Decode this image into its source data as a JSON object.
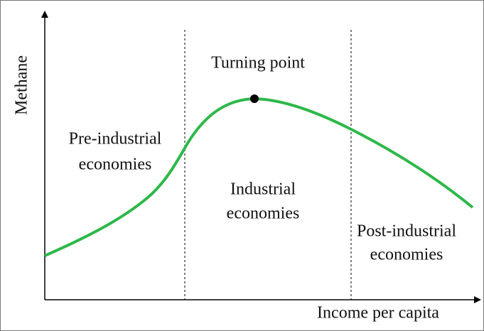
{
  "axes": {
    "y_label": "Methane",
    "x_label": "Income per capita"
  },
  "annotations": {
    "turning_point": "Turning point"
  },
  "regions": [
    {
      "lines": [
        "Pre-industrial",
        "economies"
      ]
    },
    {
      "lines": [
        "Industrial",
        "economies"
      ]
    },
    {
      "lines": [
        "Post-industrial",
        "economies"
      ]
    }
  ]
}
